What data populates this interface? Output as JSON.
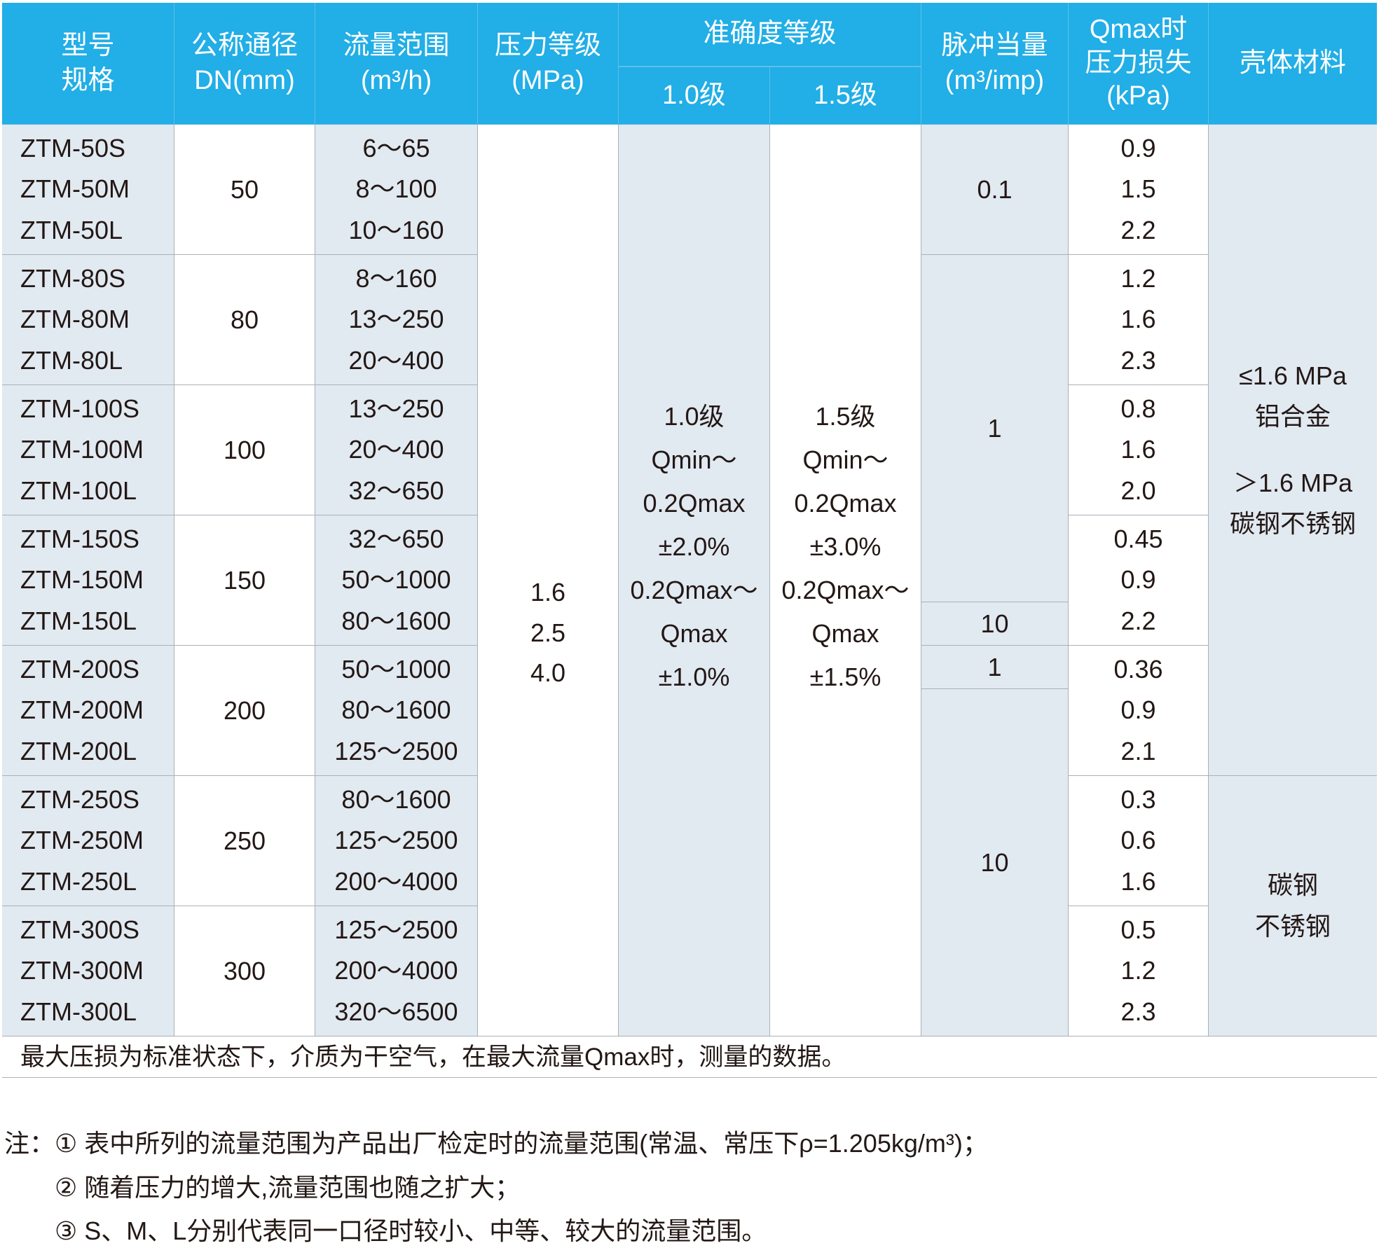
{
  "header": {
    "model": [
      "型号",
      "规格"
    ],
    "dn": [
      "公称通径",
      "DN(mm)"
    ],
    "flow": [
      "流量范围",
      "(m³/h)"
    ],
    "pressure": [
      "压力等级",
      "(MPa)"
    ],
    "accuracy": "准确度等级",
    "acc10": "1.0级",
    "acc15": "1.5级",
    "pulse": [
      "脉冲当量",
      "(m³/imp)"
    ],
    "loss": [
      "Qmax时",
      "压力损失",
      "(kPa)"
    ],
    "material": "壳体材料"
  },
  "models": [
    "ZTM-50S",
    "ZTM-50M",
    "ZTM-50L",
    "ZTM-80S",
    "ZTM-80M",
    "ZTM-80L",
    "ZTM-100S",
    "ZTM-100M",
    "ZTM-100L",
    "ZTM-150S",
    "ZTM-150M",
    "ZTM-150L",
    "ZTM-200S",
    "ZTM-200M",
    "ZTM-200L",
    "ZTM-250S",
    "ZTM-250M",
    "ZTM-250L",
    "ZTM-300S",
    "ZTM-300M",
    "ZTM-300L"
  ],
  "dn": [
    "50",
    "80",
    "100",
    "150",
    "200",
    "250",
    "300"
  ],
  "flow_ranges": [
    "6～65",
    "8～100",
    "10～160",
    "8～160",
    "13～250",
    "20～400",
    "13～250",
    "20～400",
    "32～650",
    "32～650",
    "50～1000",
    "80～1600",
    "50～1000",
    "80～1600",
    "125～2500",
    "80～1600",
    "125～2500",
    "200～4000",
    "125～2500",
    "200～4000",
    "320～6500"
  ],
  "pressure_grades": [
    "1.6",
    "2.5",
    "4.0"
  ],
  "accuracy_10": [
    "1.0级",
    "Qmin～",
    "0.2Qmax",
    "±2.0%",
    "0.2Qmax～",
    "Qmax",
    "±1.0%"
  ],
  "accuracy_15": [
    "1.5级",
    "Qmin～",
    "0.2Qmax",
    "±3.0%",
    "0.2Qmax～",
    "Qmax",
    "±1.5%"
  ],
  "pulse": [
    {
      "value": "0.1",
      "rows": 3
    },
    {
      "value": "1",
      "rows": 8
    },
    {
      "value": "10",
      "rows": 1
    },
    {
      "value": "1",
      "rows": 1
    },
    {
      "value": "10",
      "rows": 8
    }
  ],
  "pressure_loss": [
    "0.9",
    "1.5",
    "2.2",
    "1.2",
    "1.6",
    "2.3",
    "0.8",
    "1.6",
    "2.0",
    "0.45",
    "0.9",
    "2.2",
    "0.36",
    "0.9",
    "2.1",
    "0.3",
    "0.6",
    "1.6",
    "0.5",
    "1.2",
    "2.3"
  ],
  "material": [
    {
      "lines": [
        "≤1.6 MPa",
        "铝合金",
        "",
        "＞1.6 MPa",
        "碳钢不锈钢"
      ],
      "rows": 15
    },
    {
      "lines": [
        "碳钢",
        "不锈钢"
      ],
      "rows": 6
    }
  ],
  "footer": "最大压损为标准状态下，介质为干空气，在最大流量Qmax时，测量的数据。",
  "notes": [
    "注：① 表中所列的流量范围为产品出厂检定时的流量范围(常温、常压下ρ=1.205kg/m³)；",
    "② 随着压力的增大,流量范围也随之扩大；",
    "③ S、M、L分别代表同一口径时较小、中等、较大的流量范围。"
  ],
  "colors": {
    "header_bg": "#22aee6",
    "shaded_cell": "#e1e9f1"
  }
}
